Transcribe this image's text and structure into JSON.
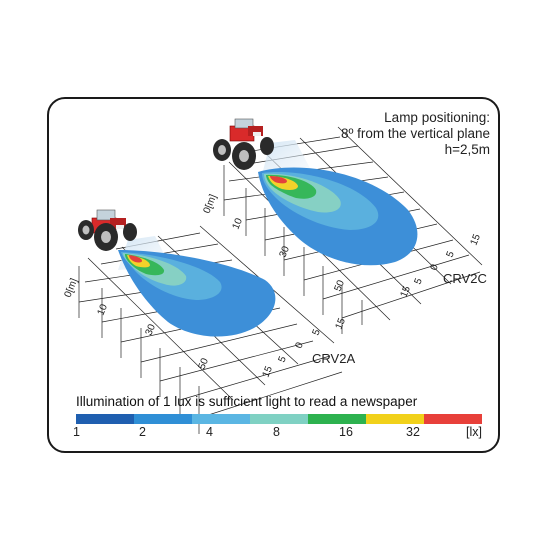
{
  "note": {
    "line1": "Lamp positioning:",
    "line2": "8º from the vertical plane",
    "line3": "h=2,5m"
  },
  "models": {
    "front": "CRV2A",
    "back": "CRV2C"
  },
  "grid": {
    "unit_label": "0[m]",
    "distance_ticks": [
      "10",
      "30",
      "50"
    ],
    "lateral_ticks": [
      "5",
      "0",
      "5",
      "15"
    ],
    "lateral_first": "15"
  },
  "caption": "Illumination of 1 lux is sufficient light to read a newspaper",
  "scale": {
    "colors": [
      "#1f5fb0",
      "#2f8fd6",
      "#5bb6e3",
      "#7fd1c3",
      "#2db24f",
      "#f1d11a",
      "#e8403a"
    ],
    "ticks": [
      "1",
      "2",
      "4",
      "8",
      "16",
      "32",
      "[lx]"
    ]
  },
  "colors": {
    "zone_1": "#3a6fc4",
    "zone_2": "#3d8fd8",
    "zone_4": "#5ab0de",
    "zone_8": "#86d0c4",
    "zone_16": "#36b75a",
    "zone_32": "#f2d22a",
    "zone_max": "#e3413c",
    "tractor": "#d92a2a"
  }
}
